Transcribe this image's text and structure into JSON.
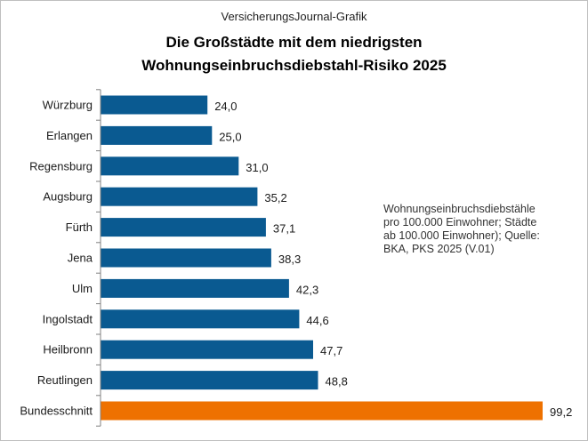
{
  "header": {
    "source_label": "VersicherungsJournal-Grafik",
    "title_line1": "Die Großstädte mit dem niedrigsten",
    "title_line2": "Wohnungseinbruchsdiebstahl-Risiko 2025"
  },
  "note": {
    "line1": "Wohnungseinbruchsdiebstähle",
    "line2": "pro 100.000 Einwohner;  Städte",
    "line3": "ab 100.000 Einwohner);  Quelle:",
    "line4": "BKA, PKS 2025  (V.01)"
  },
  "colors": {
    "bar": "#0a5a91",
    "highlight": "#ee7100",
    "axis": "#808080"
  },
  "chart_data": {
    "type": "bar",
    "orientation": "horizontal",
    "title": "Die Großstädte mit dem niedrigsten Wohnungseinbruchsdiebstahl-Risiko 2025",
    "categories": [
      "Würzburg",
      "Erlangen",
      "Regensburg",
      "Augsburg",
      "Fürth",
      "Jena",
      "Ulm",
      "Ingolstadt",
      "Heilbronn",
      "Reutlingen",
      "Bundesschnitt"
    ],
    "values": [
      24.0,
      25.0,
      31.0,
      35.2,
      37.1,
      38.3,
      42.3,
      44.6,
      47.7,
      48.8,
      99.2
    ],
    "value_labels": [
      "24,0",
      "25,0",
      "31,0",
      "35,2",
      "37,1",
      "38,3",
      "42,3",
      "44,6",
      "47,7",
      "48,8",
      "99,2"
    ],
    "highlight_category": "Bundesschnitt",
    "xlim": [
      0,
      99.2
    ],
    "grid": false,
    "legend": "none"
  }
}
